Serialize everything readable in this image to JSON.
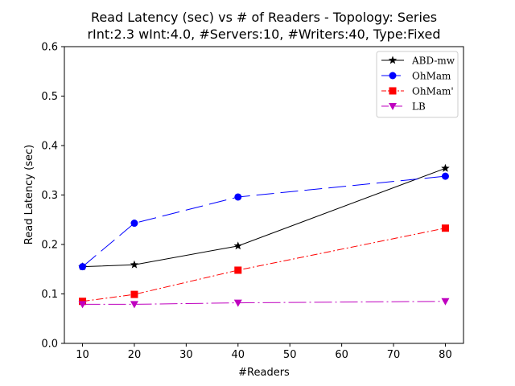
{
  "chart_data": {
    "type": "line",
    "title": "Read Latency (sec) vs # of Readers - Topology: Series",
    "subtitle": "rInt:2.3 wInt:4.0, #Servers:10, #Writers:40, Type:Fixed",
    "xlabel": "#Readers",
    "ylabel": "Read Latency (sec)",
    "xlim": [
      6.5,
      83.5
    ],
    "ylim": [
      0.0,
      0.6
    ],
    "xticks": [
      10,
      20,
      30,
      40,
      50,
      60,
      70,
      80
    ],
    "xtick_labels": [
      "10",
      "20",
      "30",
      "40",
      "50",
      "60",
      "70",
      "80"
    ],
    "yticks": [
      0.0,
      0.1,
      0.2,
      0.3,
      0.4,
      0.5,
      0.6
    ],
    "ytick_labels": [
      "0.0",
      "0.1",
      "0.2",
      "0.3",
      "0.4",
      "0.5",
      "0.6"
    ],
    "grid": false,
    "legend_position": "top-right",
    "x": [
      10,
      20,
      40,
      80
    ],
    "series": [
      {
        "name": "ABD-mw",
        "values": [
          0.155,
          0.159,
          0.197,
          0.354
        ],
        "color": "#000000",
        "marker": "star",
        "line_style": "solid"
      },
      {
        "name": "OhMam",
        "values": [
          0.155,
          0.243,
          0.296,
          0.338
        ],
        "color": "#0000ff",
        "marker": "circle",
        "line_style": "long-dash"
      },
      {
        "name": "OhMam'",
        "values": [
          0.085,
          0.099,
          0.148,
          0.233
        ],
        "color": "#ff0000",
        "marker": "square",
        "line_style": "dash-dot"
      },
      {
        "name": "LB",
        "values": [
          0.079,
          0.079,
          0.082,
          0.085
        ],
        "color": "#bf00bf",
        "marker": "triangle-down",
        "line_style": "dash-dot-long"
      }
    ]
  }
}
